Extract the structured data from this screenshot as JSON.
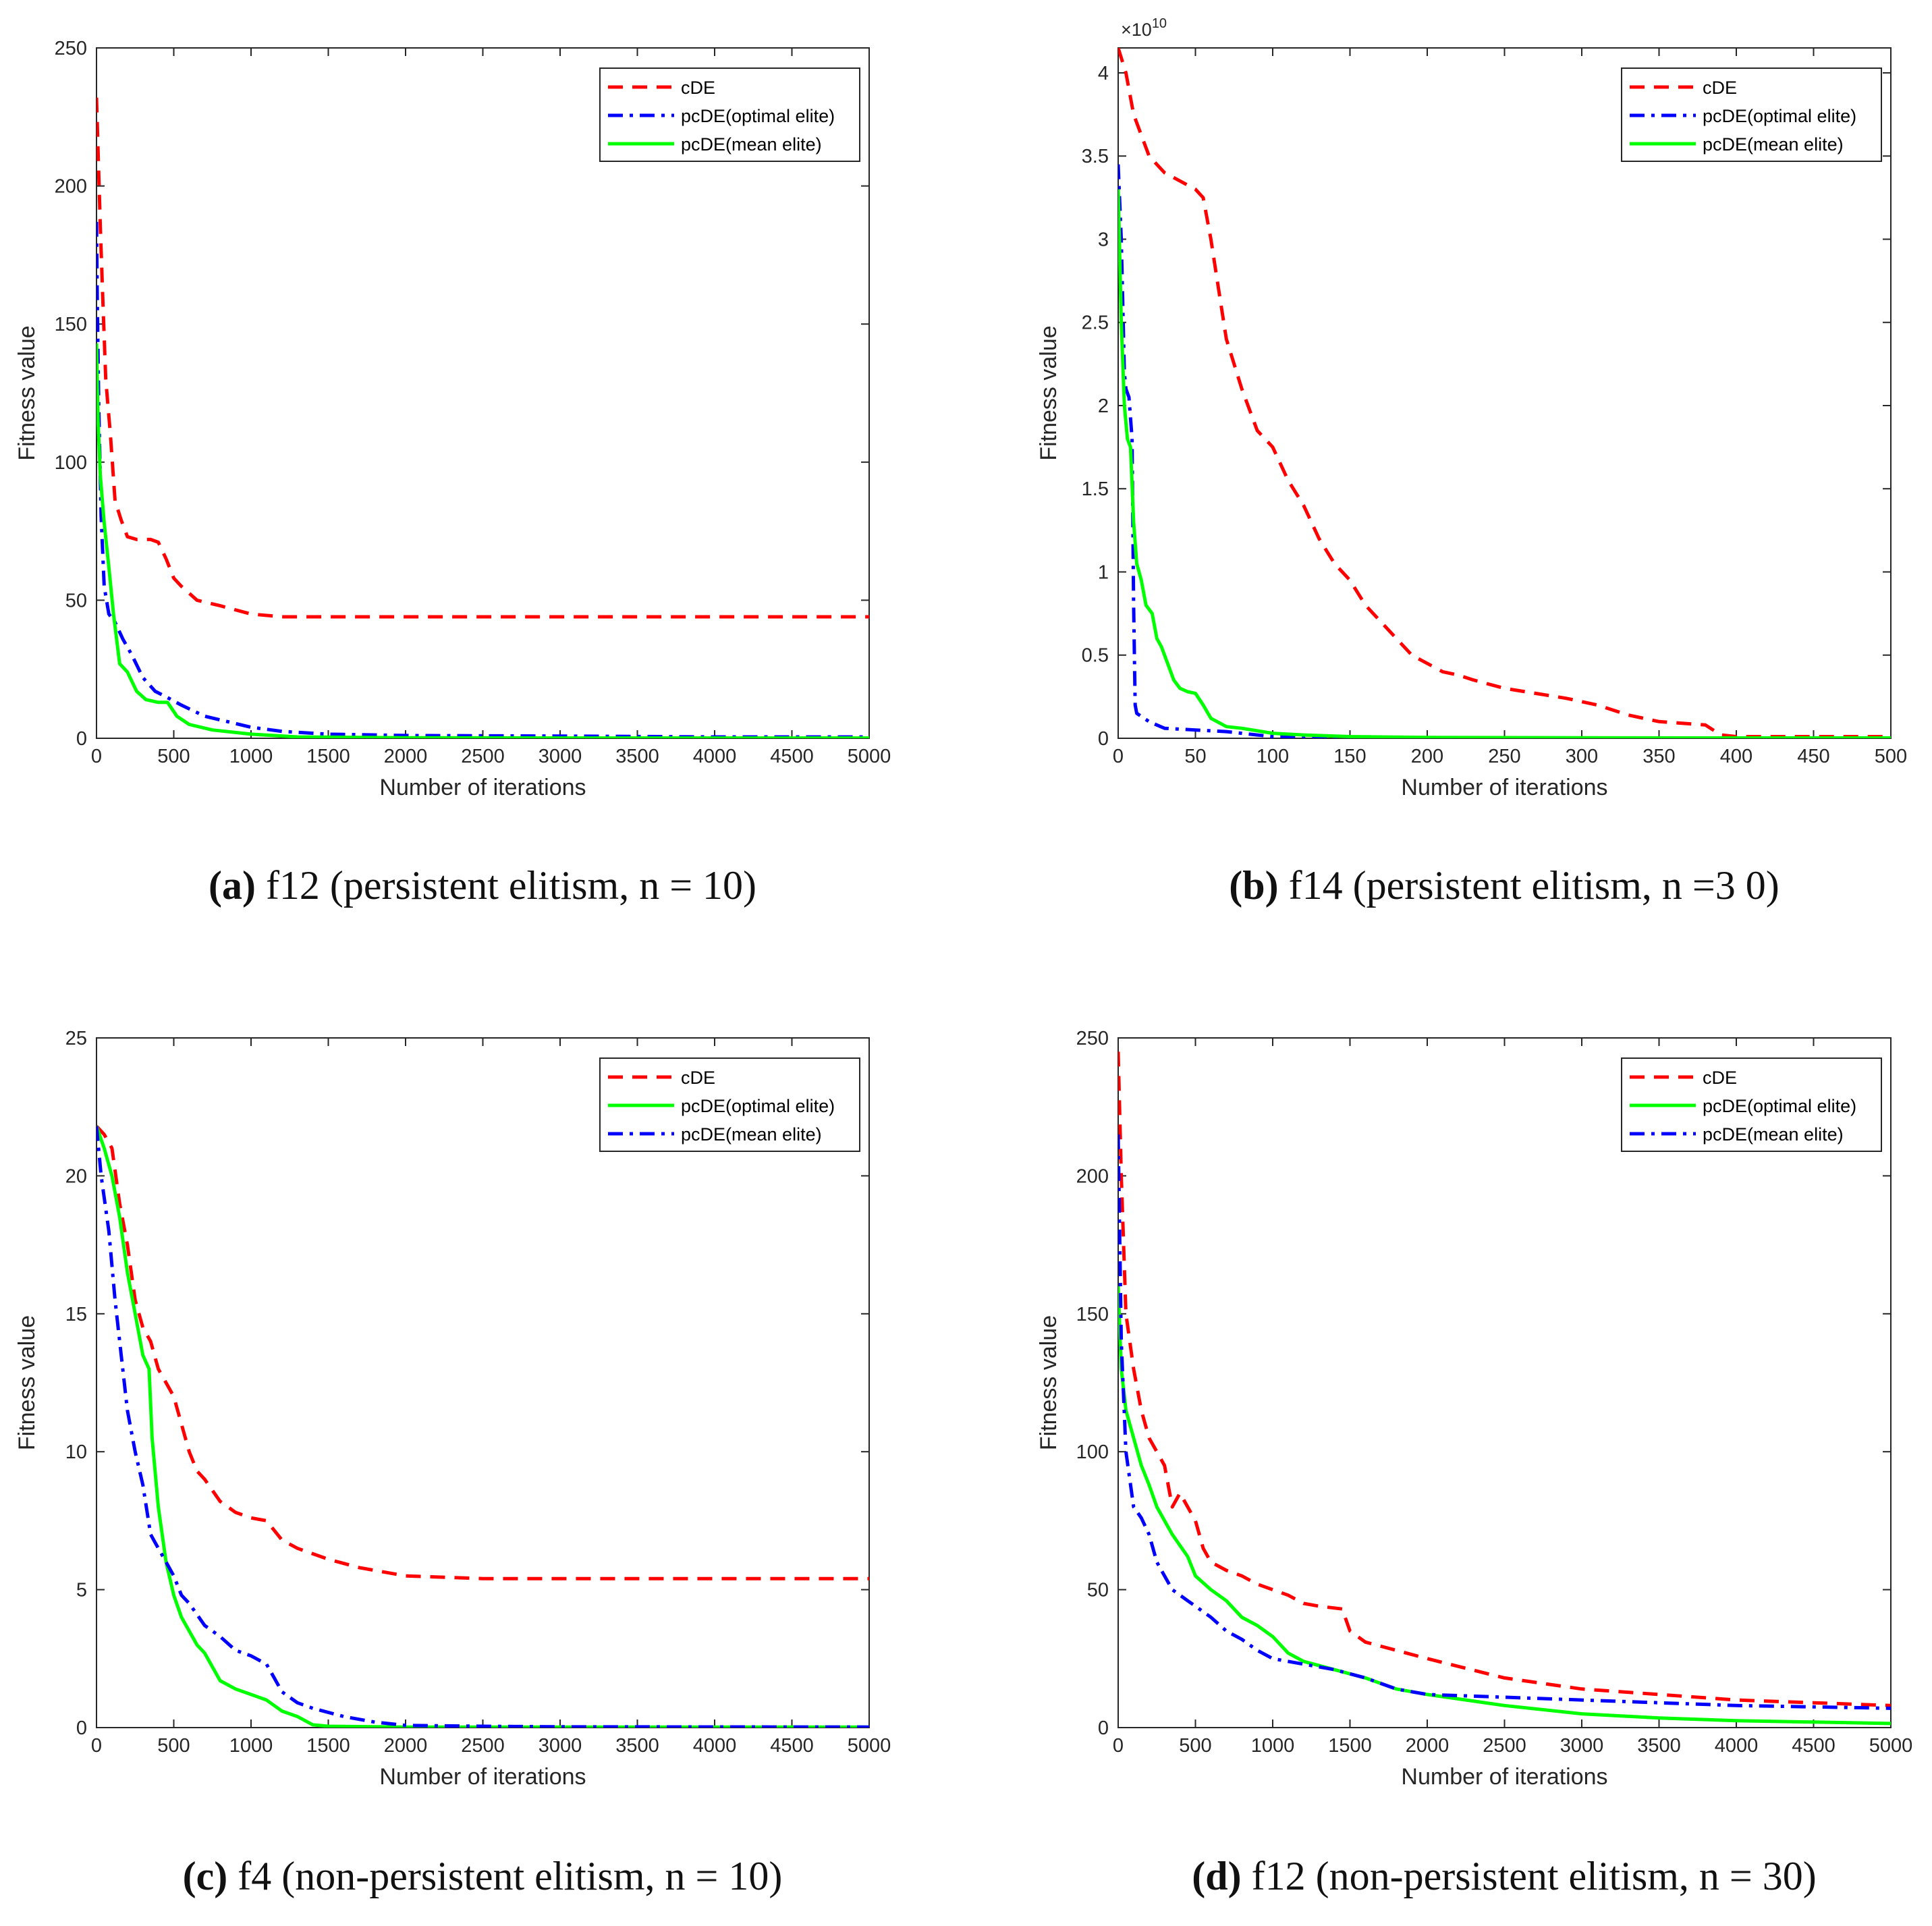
{
  "colors": {
    "cDE": "#ff0000",
    "optimal": "#0000ff",
    "mean": "#00ff00",
    "axis": "#262626"
  },
  "chart_data": [
    {
      "type": "line",
      "caption_letter": "(a)",
      "caption_text": " f12 (persistent elitism, n = 10)",
      "xlabel": "Number of iterations",
      "ylabel": "Fitness value",
      "xlim": [
        0,
        5000
      ],
      "ylim": [
        0,
        250
      ],
      "xticks": [
        0,
        500,
        1000,
        1500,
        2000,
        2500,
        3000,
        3500,
        4000,
        4500,
        5000
      ],
      "xtick_labels": [
        "0",
        "500",
        "1000",
        "1500",
        "2000",
        "2500",
        "3000",
        "3500",
        "4000",
        "4500",
        "5000"
      ],
      "yticks": [
        0,
        50,
        100,
        150,
        200,
        250
      ],
      "ytick_labels": [
        "0",
        "50",
        "100",
        "150",
        "200",
        "250"
      ],
      "exponent_label": "",
      "legend_position": "top-right",
      "series": [
        {
          "name": "cDE",
          "color": "#ff0000",
          "style": "dashed",
          "x": [
            0,
            10,
            25,
            40,
            60,
            90,
            120,
            160,
            200,
            260,
            300,
            350,
            400,
            450,
            500,
            550,
            650,
            800,
            1000,
            1200,
            1500,
            2000,
            3000,
            4000,
            5000
          ],
          "y": [
            232,
            213,
            185,
            160,
            130,
            110,
            86,
            79,
            73,
            72,
            72,
            72,
            71,
            65,
            58,
            55,
            50,
            48,
            45,
            44,
            44,
            44,
            44,
            44,
            44
          ]
        },
        {
          "name": "pcDE(optimal elite)",
          "color": "#0000ff",
          "style": "dashdot",
          "x": [
            0,
            5,
            15,
            30,
            50,
            80,
            120,
            170,
            230,
            300,
            380,
            450,
            550,
            700,
            850,
            1000,
            1200,
            1500,
            2000,
            3000,
            4000,
            5000
          ],
          "y": [
            187,
            160,
            120,
            80,
            55,
            45,
            42,
            36,
            30,
            22,
            17,
            15,
            12,
            8,
            6,
            4,
            2.5,
            1.5,
            1,
            0.8,
            0.5,
            0.5
          ]
        },
        {
          "name": "pcDE(mean elite)",
          "color": "#00ff00",
          "style": "solid",
          "x": [
            0,
            10,
            25,
            50,
            80,
            110,
            150,
            200,
            260,
            320,
            400,
            460,
            520,
            600,
            750,
            1000,
            1300,
            2000,
            3000,
            4000,
            5000
          ],
          "y": [
            143,
            115,
            95,
            78,
            62,
            45,
            27,
            24,
            17,
            14,
            13,
            13,
            8,
            5,
            3,
            1.5,
            0.5,
            0.2,
            0.1,
            0.1,
            0.1
          ]
        }
      ]
    },
    {
      "type": "line",
      "caption_letter": "(b)",
      "caption_text": " f14 (persistent elitism, n =3 0)",
      "xlabel": "Number of iterations",
      "ylabel": "Fitness value",
      "xlim": [
        0,
        500
      ],
      "ylim": [
        0,
        4.15
      ],
      "xticks": [
        0,
        50,
        100,
        150,
        200,
        250,
        300,
        350,
        400,
        450,
        500
      ],
      "xtick_labels": [
        "0",
        "50",
        "100",
        "150",
        "200",
        "250",
        "300",
        "350",
        "400",
        "450",
        "500"
      ],
      "yticks": [
        0,
        0.5,
        1,
        1.5,
        2,
        2.5,
        3,
        3.5,
        4
      ],
      "ytick_labels": [
        "0",
        "0.5",
        "1",
        "1.5",
        "2",
        "2.5",
        "3",
        "3.5",
        "4"
      ],
      "exponent_label": "×10",
      "exponent_power": "10",
      "legend_position": "top-right",
      "series": [
        {
          "name": "cDE",
          "color": "#ff0000",
          "style": "dashed",
          "x": [
            0,
            5,
            10,
            20,
            30,
            40,
            50,
            55,
            60,
            65,
            70,
            80,
            90,
            100,
            110,
            120,
            130,
            140,
            150,
            160,
            170,
            180,
            190,
            200,
            210,
            220,
            230,
            250,
            270,
            290,
            310,
            330,
            350,
            380,
            390,
            400,
            450,
            500
          ],
          "y": [
            4.15,
            4.0,
            3.75,
            3.5,
            3.4,
            3.35,
            3.3,
            3.25,
            3.0,
            2.7,
            2.4,
            2.1,
            1.85,
            1.75,
            1.55,
            1.4,
            1.2,
            1.05,
            0.95,
            0.8,
            0.7,
            0.6,
            0.5,
            0.45,
            0.4,
            0.38,
            0.35,
            0.3,
            0.27,
            0.24,
            0.2,
            0.14,
            0.1,
            0.08,
            0.02,
            0.01,
            0.01,
            0.01
          ]
        },
        {
          "name": "pcDE(optimal elite)",
          "color": "#0000ff",
          "style": "dashdot",
          "x": [
            0,
            2,
            4,
            5,
            7,
            9,
            10,
            11,
            12,
            20,
            30,
            50,
            70,
            90,
            100,
            150,
            200,
            300,
            400,
            500
          ],
          "y": [
            3.45,
            3.0,
            2.2,
            2.1,
            2.05,
            1.8,
            0.8,
            0.2,
            0.15,
            0.1,
            0.06,
            0.05,
            0.04,
            0.02,
            0.01,
            0.005,
            0.003,
            0.002,
            0.002,
            0.002
          ]
        },
        {
          "name": "pcDE(mean elite)",
          "color": "#00ff00",
          "style": "solid",
          "x": [
            0,
            2,
            4,
            6,
            8,
            10,
            12,
            15,
            18,
            22,
            25,
            28,
            32,
            36,
            40,
            45,
            50,
            55,
            60,
            70,
            80,
            100,
            120,
            150,
            200,
            300,
            400,
            500
          ],
          "y": [
            3.3,
            2.5,
            2.0,
            1.8,
            1.75,
            1.3,
            1.05,
            0.95,
            0.8,
            0.75,
            0.6,
            0.55,
            0.45,
            0.35,
            0.3,
            0.28,
            0.27,
            0.2,
            0.12,
            0.07,
            0.06,
            0.03,
            0.02,
            0.01,
            0.005,
            0.003,
            0.002,
            0.002
          ]
        }
      ]
    },
    {
      "type": "line",
      "caption_letter": "(c)",
      "caption_text": " f4 (non-persistent elitism, n = 10)",
      "xlabel": "Number of iterations",
      "ylabel": "Fitness value",
      "xlim": [
        0,
        5000
      ],
      "ylim": [
        0,
        25
      ],
      "xticks": [
        0,
        500,
        1000,
        1500,
        2000,
        2500,
        3000,
        3500,
        4000,
        4500,
        5000
      ],
      "xtick_labels": [
        "0",
        "500",
        "1000",
        "1500",
        "2000",
        "2500",
        "3000",
        "3500",
        "4000",
        "4500",
        "5000"
      ],
      "yticks": [
        0,
        5,
        10,
        15,
        20,
        25
      ],
      "ytick_labels": [
        "0",
        "5",
        "10",
        "15",
        "20",
        "25"
      ],
      "exponent_label": "",
      "legend_position": "top-right",
      "series": [
        {
          "name": "cDE",
          "color": "#ff0000",
          "style": "dashed",
          "x": [
            0,
            50,
            100,
            150,
            200,
            250,
            300,
            350,
            400,
            450,
            500,
            550,
            600,
            650,
            700,
            800,
            900,
            1000,
            1100,
            1200,
            1300,
            1500,
            1700,
            2000,
            2500,
            3000,
            4000,
            5000
          ],
          "y": [
            21.8,
            21.5,
            21.0,
            19.0,
            17.5,
            15.5,
            14.5,
            14.0,
            13.0,
            12.5,
            12.0,
            11.0,
            10.0,
            9.3,
            9.0,
            8.2,
            7.8,
            7.6,
            7.5,
            6.8,
            6.5,
            6.1,
            5.8,
            5.5,
            5.4,
            5.4,
            5.4,
            5.4
          ]
        },
        {
          "name": "pcDE(optimal elite)",
          "color": "#00ff00",
          "style": "solid",
          "x": [
            0,
            50,
            100,
            150,
            200,
            250,
            300,
            340,
            360,
            400,
            450,
            500,
            550,
            600,
            650,
            700,
            750,
            800,
            900,
            1000,
            1100,
            1200,
            1300,
            1400,
            1500,
            2000,
            3000,
            5000
          ],
          "y": [
            21.8,
            21.0,
            20.0,
            18.5,
            16.5,
            15.0,
            13.5,
            13.0,
            10.5,
            8.0,
            6.0,
            4.8,
            4.0,
            3.5,
            3.0,
            2.7,
            2.2,
            1.7,
            1.4,
            1.2,
            1.0,
            0.6,
            0.4,
            0.1,
            0.05,
            0.02,
            0.02,
            0.02
          ]
        },
        {
          "name": "pcDE(mean elite)",
          "color": "#0000ff",
          "style": "dashdot",
          "x": [
            0,
            30,
            80,
            120,
            160,
            200,
            250,
            300,
            350,
            400,
            450,
            500,
            550,
            600,
            700,
            800,
            900,
            1000,
            1100,
            1150,
            1200,
            1300,
            1400,
            1600,
            1800,
            2000,
            2500,
            3000,
            5000
          ],
          "y": [
            21.8,
            20.0,
            18.0,
            15.5,
            13.5,
            11.5,
            10.0,
            8.8,
            7.0,
            6.5,
            6.0,
            5.5,
            4.8,
            4.5,
            3.7,
            3.3,
            2.8,
            2.6,
            2.3,
            1.8,
            1.3,
            0.9,
            0.7,
            0.4,
            0.2,
            0.08,
            0.05,
            0.03,
            0.02
          ]
        }
      ]
    },
    {
      "type": "line",
      "caption_letter": "(d)",
      "caption_text": " f12 (non-persistent elitism, n = 30)",
      "xlabel": "Number of iterations",
      "ylabel": "Fitness value",
      "xlim": [
        0,
        5000
      ],
      "ylim": [
        0,
        250
      ],
      "xticks": [
        0,
        500,
        1000,
        1500,
        2000,
        2500,
        3000,
        3500,
        4000,
        4500,
        5000
      ],
      "xtick_labels": [
        "0",
        "500",
        "1000",
        "1500",
        "2000",
        "2500",
        "3000",
        "3500",
        "4000",
        "4500",
        "5000"
      ],
      "yticks": [
        0,
        50,
        100,
        150,
        200,
        250
      ],
      "ytick_labels": [
        "0",
        "50",
        "100",
        "150",
        "200",
        "250"
      ],
      "exponent_label": "",
      "legend_position": "top-right",
      "series": [
        {
          "name": "cDE",
          "color": "#ff0000",
          "style": "dashed",
          "x": [
            0,
            20,
            50,
            100,
            150,
            200,
            250,
            300,
            350,
            400,
            450,
            500,
            550,
            600,
            700,
            800,
            900,
            1000,
            1100,
            1200,
            1300,
            1450,
            1500,
            1600,
            1800,
            2000,
            2500,
            3000,
            3500,
            4000,
            4500,
            5000
          ],
          "y": [
            245,
            200,
            150,
            130,
            115,
            105,
            100,
            95,
            80,
            85,
            80,
            75,
            65,
            60,
            57,
            55,
            52,
            50,
            48,
            45,
            44,
            43,
            35,
            31,
            28,
            25,
            18,
            14,
            12,
            10,
            9,
            8
          ]
        },
        {
          "name": "pcDE(optimal elite)",
          "color": "#00ff00",
          "style": "solid",
          "x": [
            0,
            20,
            50,
            100,
            150,
            200,
            250,
            300,
            350,
            400,
            450,
            500,
            600,
            700,
            800,
            900,
            1000,
            1100,
            1200,
            1400,
            1600,
            1800,
            2000,
            2500,
            3000,
            3500,
            4000,
            4500,
            5000
          ],
          "y": [
            160,
            130,
            115,
            105,
            95,
            88,
            80,
            75,
            70,
            66,
            62,
            55,
            50,
            46,
            40,
            37,
            33,
            27,
            24,
            21,
            18,
            14,
            12,
            8,
            5,
            3.5,
            2.5,
            2,
            1.5
          ]
        },
        {
          "name": "pcDE(mean elite)",
          "color": "#0000ff",
          "style": "dashdot",
          "x": [
            0,
            20,
            50,
            100,
            150,
            200,
            250,
            300,
            350,
            400,
            450,
            500,
            600,
            700,
            800,
            900,
            1000,
            1100,
            1200,
            1400,
            1600,
            1800,
            2000,
            2500,
            3000,
            3500,
            4000,
            4500,
            5000
          ],
          "y": [
            215,
            140,
            100,
            80,
            76,
            70,
            60,
            55,
            50,
            48,
            46,
            44,
            40,
            35,
            32,
            28,
            25,
            24,
            23,
            21,
            18,
            14,
            12,
            11,
            10,
            9,
            8,
            7.5,
            7
          ]
        }
      ]
    }
  ]
}
